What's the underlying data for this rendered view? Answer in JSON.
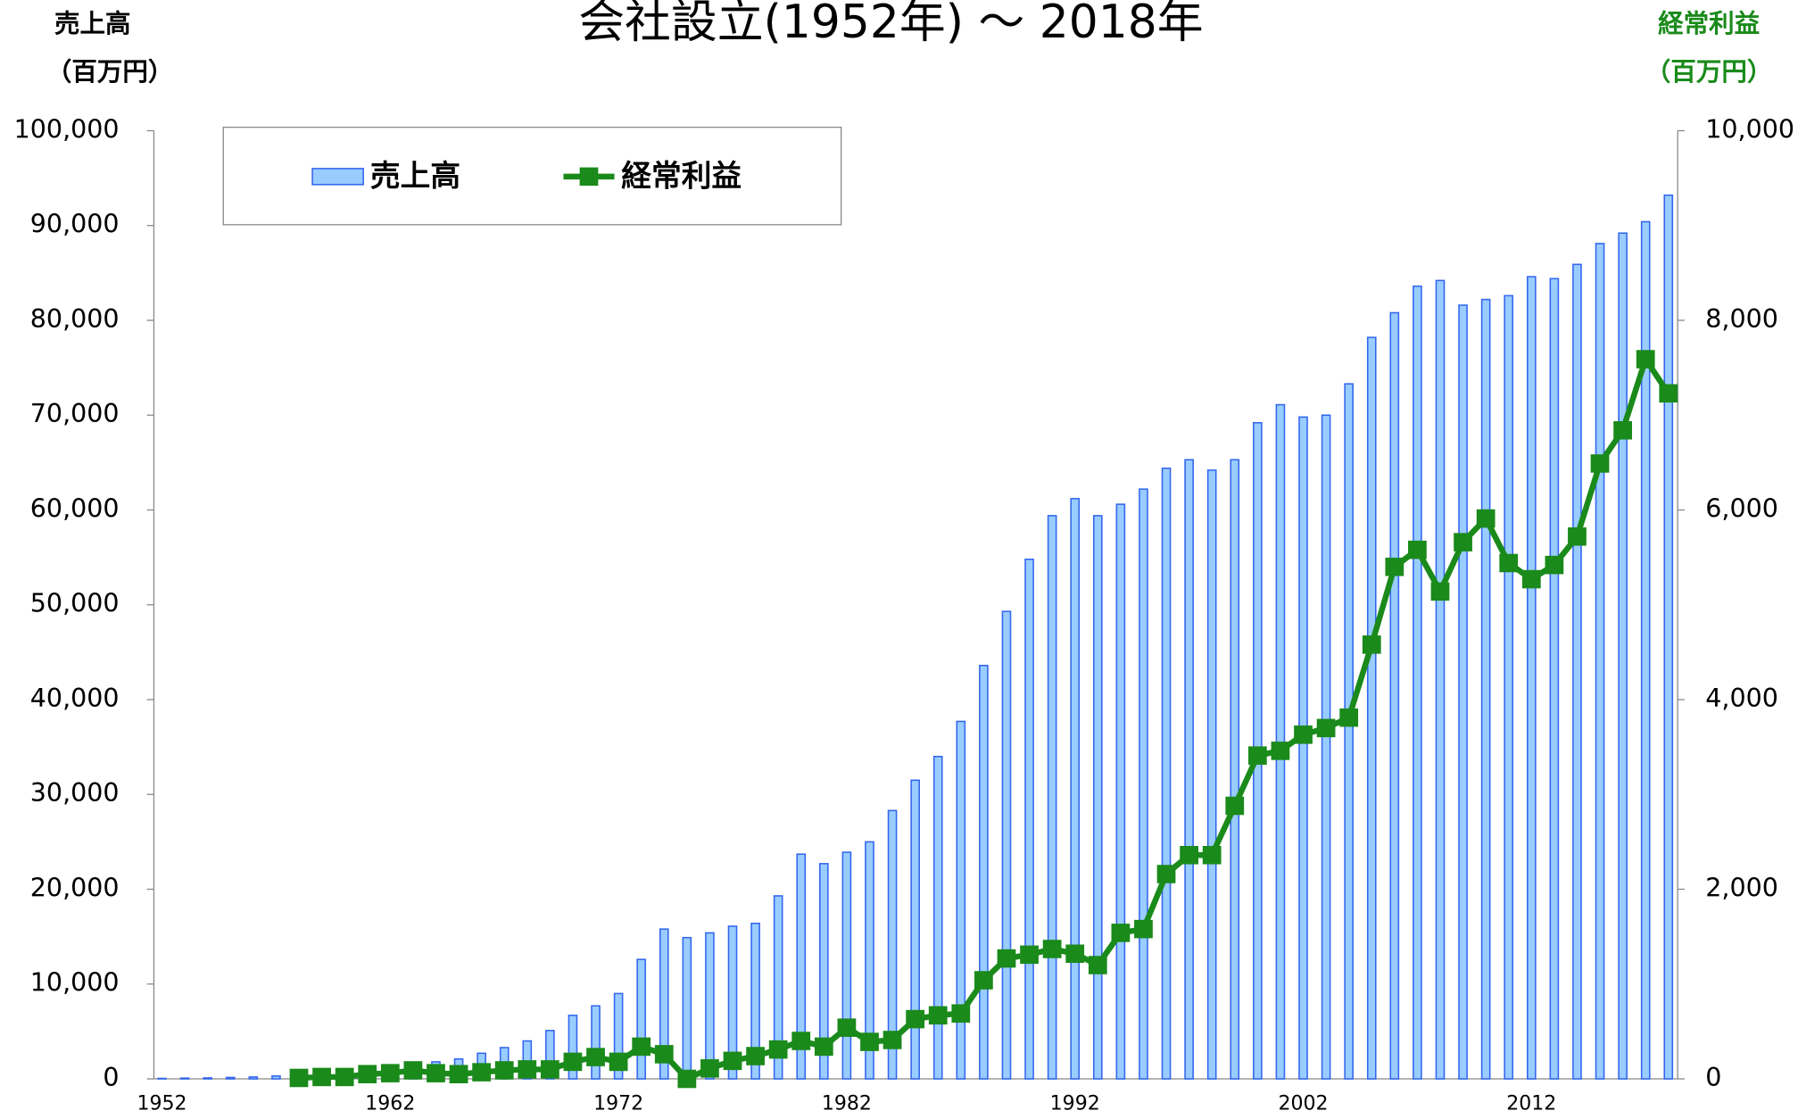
{
  "chart_data": {
    "type": "bar_line",
    "title": "会社設立(1952年) ～ 2018年",
    "y_axis_label": [
      "売上高",
      "（百万円）"
    ],
    "y2_axis_label": [
      "経常利益",
      "（百万円）"
    ],
    "legend": "upper left",
    "categories": [
      "1952",
      null,
      null,
      null,
      null,
      null,
      null,
      null,
      null,
      null,
      "1962",
      null,
      null,
      null,
      null,
      null,
      null,
      null,
      null,
      null,
      "1972",
      null,
      null,
      null,
      null,
      null,
      null,
      null,
      null,
      null,
      "1982",
      null,
      null,
      null,
      null,
      null,
      null,
      null,
      null,
      null,
      "1992",
      null,
      null,
      null,
      null,
      null,
      null,
      null,
      null,
      null,
      "2002",
      null,
      null,
      null,
      null,
      null,
      null,
      null,
      null,
      null,
      "2012",
      null,
      null,
      null,
      null,
      null,
      null
    ],
    "series": [
      {
        "name": "売上高",
        "kind": "bar",
        "color": "#99ccff",
        "edge_color": "#3366ee",
        "values": [
          50,
          80,
          100,
          150,
          200,
          300,
          500,
          600,
          800,
          1000,
          1200,
          1500,
          1800,
          2100,
          2700,
          3300,
          4000,
          5100,
          6700,
          7700,
          9000,
          12600,
          15800,
          14900,
          15400,
          16100,
          16400,
          19300,
          23700,
          22700,
          23900,
          25000,
          28300,
          31500,
          34000,
          37700,
          43600,
          49300,
          54800,
          59400,
          61200,
          59400,
          60600,
          62200,
          64400,
          65300,
          64200,
          65300,
          69200,
          71100,
          69800,
          70000,
          73300,
          78200,
          80800,
          83600,
          84200,
          81600,
          82200,
          82600,
          84600,
          84400,
          85900,
          88100,
          89200,
          90400,
          93200
        ]
      },
      {
        "name": "経常利益",
        "kind": "line",
        "axis": "y2",
        "color": "#1a8a1a",
        "values": [
          null,
          null,
          null,
          null,
          null,
          null,
          10,
          20,
          20,
          50,
          60,
          90,
          60,
          50,
          70,
          90,
          100,
          100,
          180,
          230,
          180,
          340,
          260,
          0,
          110,
          190,
          240,
          310,
          400,
          340,
          540,
          390,
          410,
          630,
          670,
          690,
          1040,
          1270,
          1310,
          1370,
          1320,
          1200,
          1540,
          1580,
          2160,
          2360,
          2360,
          2880,
          3410,
          3460,
          3630,
          3700,
          3810,
          4580,
          5400,
          5580,
          5140,
          5660,
          5910,
          5440,
          5270,
          5420,
          5720,
          6490,
          6840,
          7590,
          7230
        ]
      }
    ],
    "ylim": [
      0,
      100000
    ],
    "yticks": [
      0,
      {
        "value": 10000,
        "label": "10,000"
      },
      {
        "value": 20000,
        "label": "20,000"
      },
      {
        "value": 30000,
        "label": "30,000"
      },
      {
        "value": 40000,
        "label": "40,000"
      },
      {
        "value": 50000,
        "label": "50,000"
      },
      {
        "value": 60000,
        "label": "60,000"
      },
      {
        "value": 70000,
        "label": "70,000"
      },
      {
        "value": 80000,
        "label": "80,000"
      },
      {
        "value": 90000,
        "label": "90,000"
      },
      {
        "value": 100000,
        "label": "100,000"
      }
    ],
    "y2lim": [
      0,
      10000
    ],
    "y2ticks": [
      0,
      {
        "value": 2000,
        "label": "2,000"
      },
      {
        "value": 4000,
        "label": "4,000"
      },
      {
        "value": 6000,
        "label": "6,000"
      },
      {
        "value": 8000,
        "label": "8,000"
      },
      {
        "value": 10000,
        "label": "10,000"
      }
    ]
  }
}
